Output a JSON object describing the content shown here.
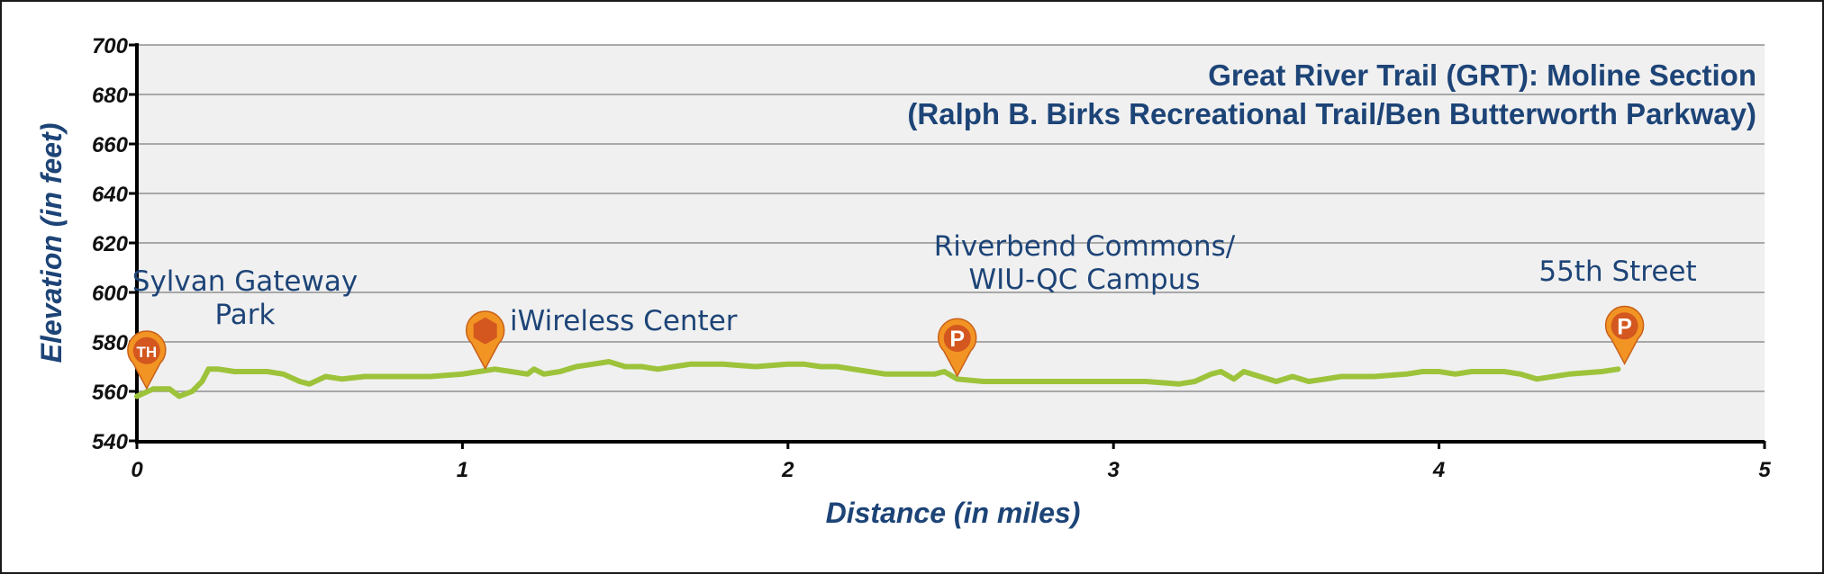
{
  "chart_data": {
    "type": "line",
    "title": "Great River Trail (GRT): Moline Section",
    "subtitle": "(Ralph B. Birks Recreational Trail/Ben Butterworth Parkway)",
    "xlabel": "Distance (in miles)",
    "ylabel": "Elevation (in feet)",
    "xlim": [
      0,
      5
    ],
    "ylim": [
      540,
      700
    ],
    "xticks": [
      "0",
      "1",
      "2",
      "3",
      "4",
      "5"
    ],
    "yticks": [
      "540",
      "560",
      "580",
      "600",
      "620",
      "640",
      "660",
      "680",
      "700"
    ],
    "grid": "horizontal",
    "line_color": "#9dc33b",
    "series": [
      {
        "x": [
          0,
          0.05,
          0.1,
          0.13,
          0.17,
          0.2,
          0.22,
          0.25,
          0.3,
          0.35,
          0.4,
          0.45,
          0.5,
          0.53,
          0.58,
          0.63,
          0.7,
          0.8,
          0.9,
          1.0,
          1.05,
          1.1,
          1.15,
          1.2,
          1.22,
          1.25,
          1.3,
          1.35,
          1.4,
          1.45,
          1.5,
          1.55,
          1.6,
          1.65,
          1.7,
          1.8,
          1.9,
          2.0,
          2.05,
          2.1,
          2.15,
          2.2,
          2.3,
          2.4,
          2.45,
          2.48,
          2.52,
          2.6,
          2.7,
          2.8,
          2.9,
          3.0,
          3.1,
          3.2,
          3.25,
          3.3,
          3.33,
          3.37,
          3.4,
          3.45,
          3.5,
          3.55,
          3.6,
          3.65,
          3.7,
          3.8,
          3.9,
          3.95,
          4.0,
          4.05,
          4.1,
          4.15,
          4.2,
          4.25,
          4.3,
          4.4,
          4.5,
          4.55
        ],
        "y": [
          558,
          561,
          561,
          558,
          560,
          564,
          569,
          569,
          568,
          568,
          568,
          567,
          564,
          563,
          566,
          565,
          566,
          566,
          566,
          567,
          568,
          569,
          568,
          567,
          569,
          567,
          568,
          570,
          571,
          572,
          570,
          570,
          569,
          570,
          571,
          571,
          570,
          571,
          571,
          570,
          570,
          569,
          567,
          567,
          567,
          568,
          565,
          564,
          564,
          564,
          564,
          564,
          564,
          563,
          564,
          567,
          568,
          565,
          568,
          566,
          564,
          566,
          564,
          565,
          566,
          566,
          567,
          568,
          568,
          567,
          568,
          568,
          568,
          567,
          565,
          567,
          568,
          569
        ]
      }
    ],
    "points_of_interest": [
      {
        "label_lines": [
          "Sylvan Gateway",
          "Park"
        ],
        "x": 0.03,
        "y": 575,
        "marker": "trailhead",
        "marker_text": "TH",
        "color": "#d4571f"
      },
      {
        "label_lines": [
          "iWireless Center"
        ],
        "x": 1.07,
        "y": 583,
        "marker": "hexagon",
        "marker_text": "",
        "color": "#d4571f"
      },
      {
        "label_lines": [
          "Riverbend Commons/",
          "WIU-QC Campus"
        ],
        "x": 2.52,
        "y": 580,
        "marker": "parking",
        "marker_text": "P",
        "color": "#d4571f"
      },
      {
        "label_lines": [
          "55th Street"
        ],
        "x": 4.57,
        "y": 585,
        "marker": "parking",
        "marker_text": "P",
        "color": "#d4571f"
      }
    ]
  }
}
